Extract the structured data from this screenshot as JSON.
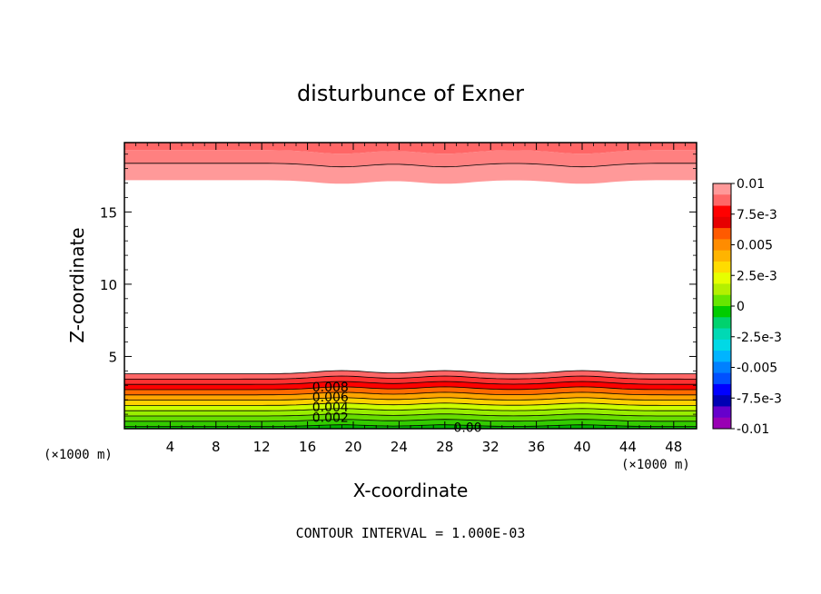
{
  "chart_data": {
    "type": "heatmap",
    "title": "disturbunce of Exner",
    "xlabel": "X-coordinate",
    "ylabel": "Z-coordinate",
    "x_unit": "(×1000 m)",
    "z_unit": "(×1000 m)",
    "xlim": [
      0,
      50
    ],
    "ylim": [
      0,
      19.8
    ],
    "x_ticks": [
      4,
      8,
      12,
      16,
      20,
      24,
      28,
      32,
      36,
      40,
      44,
      48
    ],
    "y_ticks": [
      5,
      10,
      15
    ],
    "footer": "CONTOUR INTERVAL = 1.000E-03",
    "contour_labels": [
      {
        "text": "0.008",
        "x": 18,
        "z": 2.9
      },
      {
        "text": "0.006",
        "x": 18,
        "z": 2.2
      },
      {
        "text": "0.004",
        "x": 18,
        "z": 1.5
      },
      {
        "text": "0.002",
        "x": 18,
        "z": 0.8
      },
      {
        "text": "0.00",
        "x": 30,
        "z": 0.1
      }
    ],
    "colorbar": {
      "labels": [
        "0.01",
        "7.5e-3",
        "0.005",
        "2.5e-3",
        "0",
        "-2.5e-3",
        "-0.005",
        "-7.5e-3",
        "-0.01"
      ],
      "colors": [
        "#ff9999",
        "#ff6666",
        "#ff0000",
        "#e60000",
        "#ff5a00",
        "#ff8c00",
        "#ffb400",
        "#ffdc00",
        "#e6ff00",
        "#b4f000",
        "#66e600",
        "#00cc00",
        "#00d26e",
        "#00d9b4",
        "#00d9e6",
        "#00b4ff",
        "#0080ff",
        "#0050ff",
        "#0000ff",
        "#0000b4",
        "#6600cc",
        "#9900b4"
      ]
    },
    "layers": {
      "lower_band_top_z": 3.8,
      "upper_band_bottom_z": 17.2,
      "top_z": 19.8,
      "surface_hills_x": [
        19,
        28,
        40
      ],
      "lower_contour_levels": [
        0.0,
        0.001,
        0.002,
        0.003,
        0.004,
        0.005,
        0.006,
        0.007,
        0.008,
        0.009,
        0.01
      ],
      "lower_level_colors": [
        "#00b400",
        "#33cc00",
        "#66dd00",
        "#99ee00",
        "#ccff00",
        "#ffd000",
        "#ffa500",
        "#ff6a00",
        "#ff0000",
        "#ff3030",
        "#ff6666"
      ],
      "upper_colors": [
        "#ff9999",
        "#ff8080",
        "#ff6666"
      ]
    }
  }
}
